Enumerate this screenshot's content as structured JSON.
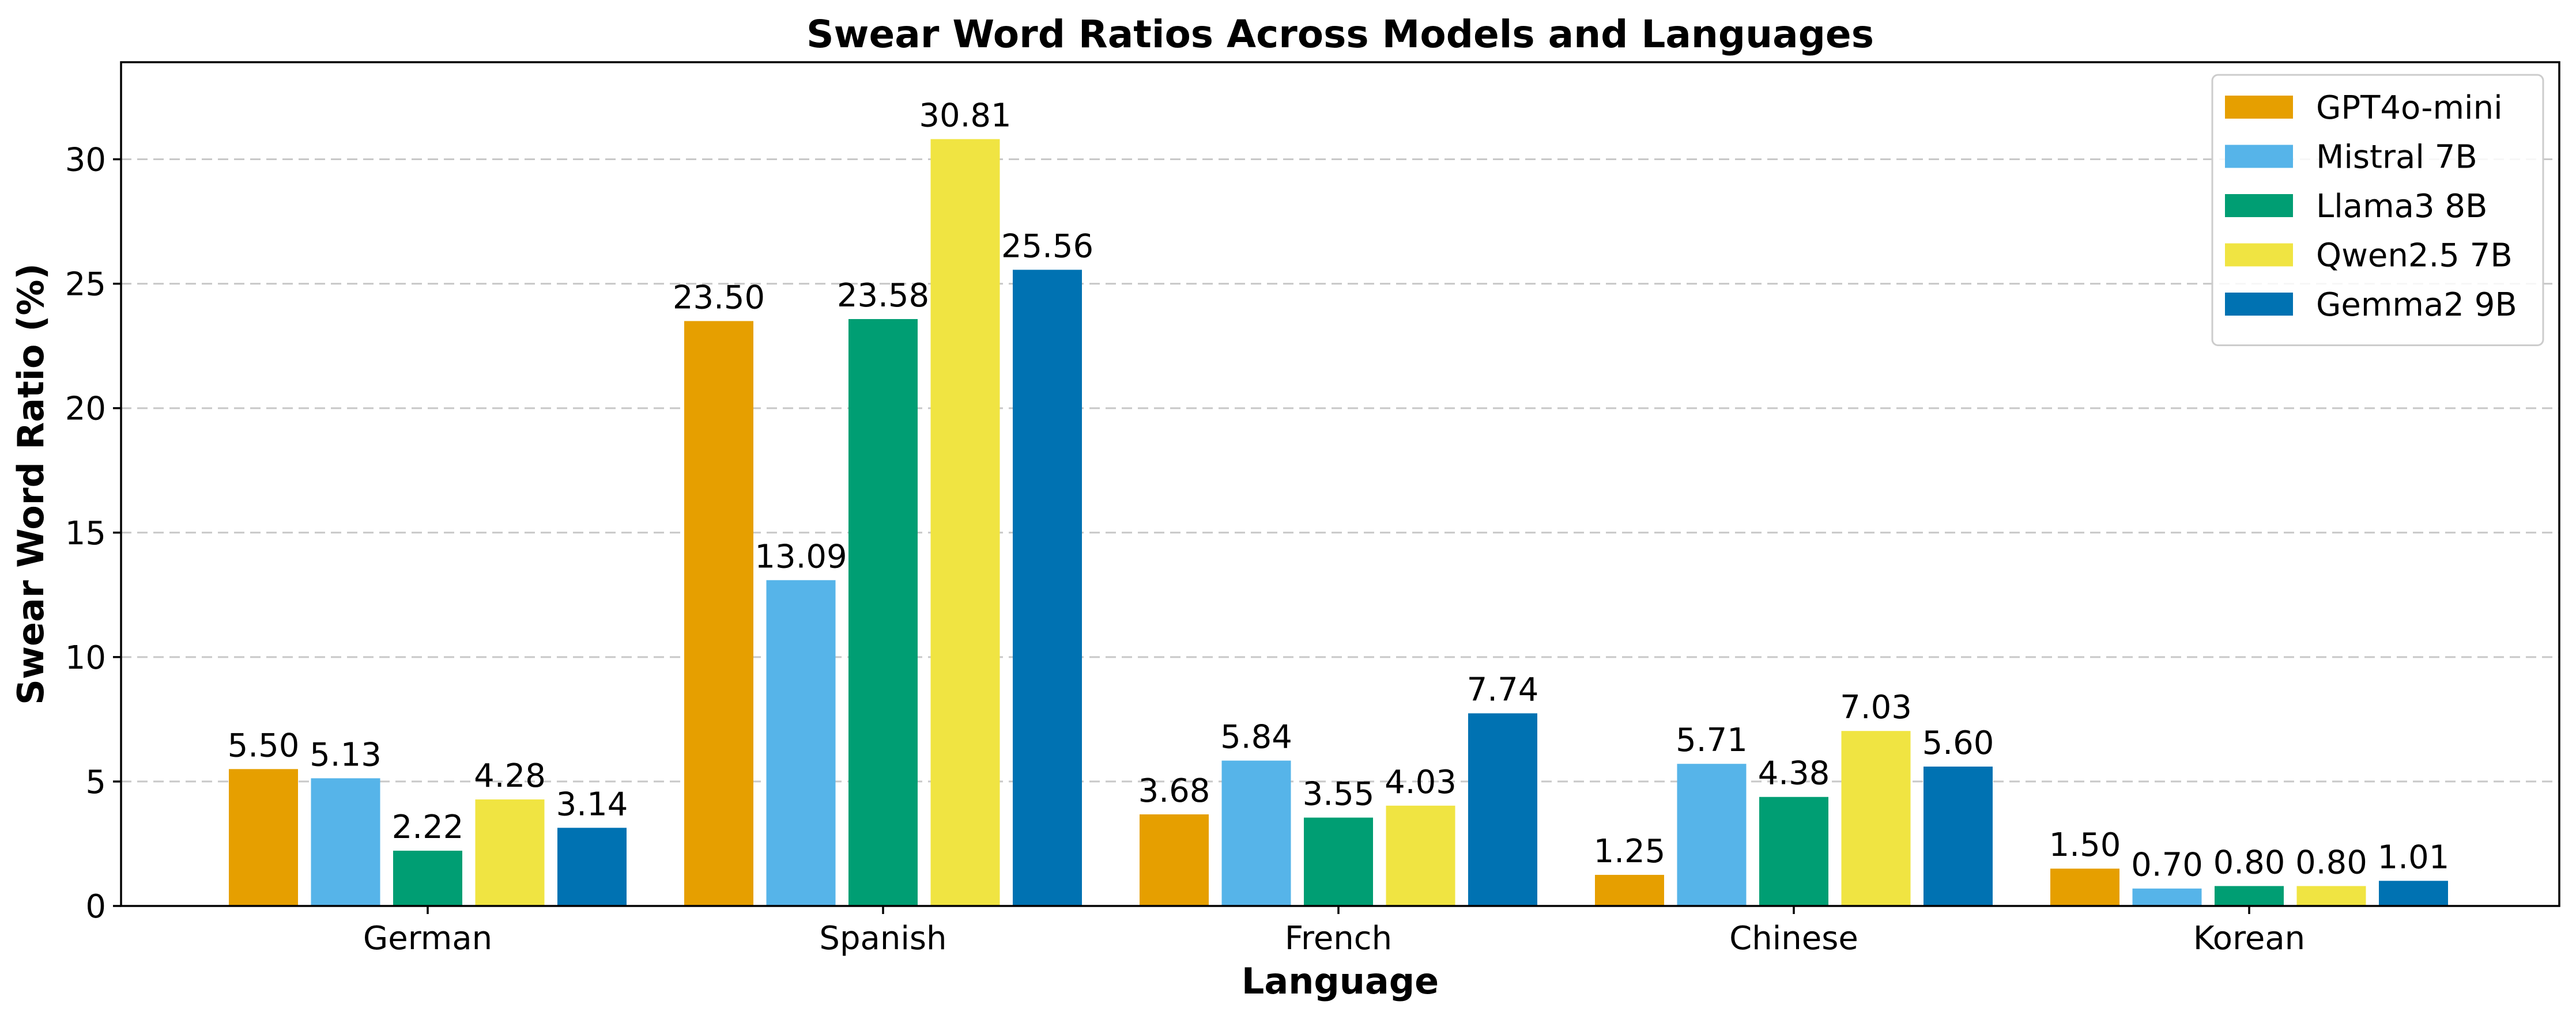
{
  "chart_data": {
    "type": "bar",
    "title": "Swear Word Ratios Across Models and Languages",
    "xlabel": "Language",
    "ylabel": "Swear Word Ratio (%)",
    "ylim": [
      0,
      33.9
    ],
    "yticks": [
      0,
      5,
      10,
      15,
      20,
      25,
      30
    ],
    "grid": true,
    "legend_position": "top-right",
    "categories": [
      "German",
      "Spanish",
      "French",
      "Chinese",
      "Korean"
    ],
    "series": [
      {
        "name": "GPT4o-mini",
        "color": "#E69F00",
        "values": [
          5.5,
          23.5,
          3.68,
          1.25,
          1.5
        ],
        "labels": [
          "5.50",
          "23.50",
          "3.68",
          "1.25",
          "1.50"
        ]
      },
      {
        "name": "Mistral 7B",
        "color": "#56B4E9",
        "values": [
          5.13,
          13.09,
          5.84,
          5.71,
          0.7
        ],
        "labels": [
          "5.13",
          "13.09",
          "5.84",
          "5.71",
          "0.70"
        ]
      },
      {
        "name": "Llama3 8B",
        "color": "#009E73",
        "values": [
          2.22,
          23.58,
          3.55,
          4.38,
          0.8
        ],
        "labels": [
          "2.22",
          "23.58",
          "3.55",
          "4.38",
          "0.80"
        ]
      },
      {
        "name": "Qwen2.5 7B",
        "color": "#F0E442",
        "values": [
          4.28,
          30.81,
          4.03,
          7.03,
          0.8
        ],
        "labels": [
          "4.28",
          "30.81",
          "4.03",
          "7.03",
          "0.80"
        ]
      },
      {
        "name": "Gemma2 9B",
        "color": "#0072B2",
        "values": [
          3.14,
          25.56,
          7.74,
          5.6,
          1.01
        ],
        "labels": [
          "3.14",
          "25.56",
          "7.74",
          "5.60",
          "1.01"
        ]
      }
    ]
  }
}
